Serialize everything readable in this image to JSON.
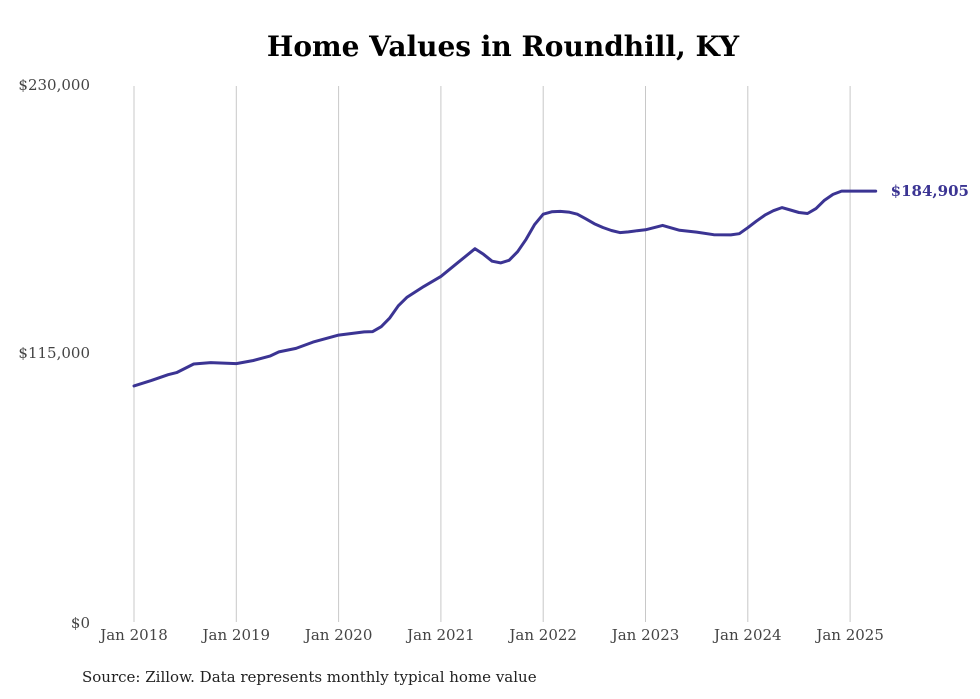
{
  "chart_data": {
    "type": "line",
    "title": "Home Values in Roundhill, KY",
    "xlabel": "",
    "ylabel": "",
    "ylim": [
      0,
      230000
    ],
    "y_ticks": [
      "$0",
      "$115,000",
      "$230,000"
    ],
    "x_ticks": [
      "Jan 2018",
      "Jan 2019",
      "Jan 2020",
      "Jan 2021",
      "Jan 2022",
      "Jan 2023",
      "Jan 2024",
      "Jan 2025"
    ],
    "grid": "vertical",
    "line_color": "#3b3493",
    "end_label": "$184,905",
    "series": [
      {
        "x": [
          "2018-01",
          "2018-03",
          "2018-05",
          "2018-06",
          "2018-08",
          "2018-10",
          "2019-01",
          "2019-03",
          "2019-05",
          "2019-06",
          "2019-08",
          "2019-10",
          "2020-01",
          "2020-04",
          "2020-05",
          "2020-06",
          "2020-07",
          "2020-08",
          "2020-09",
          "2020-11",
          "2021-01",
          "2021-03",
          "2021-05",
          "2021-06",
          "2021-07",
          "2021-08",
          "2021-09",
          "2021-10",
          "2021-11",
          "2021-12",
          "2022-01",
          "2022-02",
          "2022-03",
          "2022-04",
          "2022-05",
          "2022-06",
          "2022-07",
          "2022-08",
          "2022-09",
          "2022-10",
          "2022-11",
          "2022-12",
          "2023-01",
          "2023-03",
          "2023-05",
          "2023-07",
          "2023-09",
          "2023-11",
          "2023-12",
          "2024-01",
          "2024-02",
          "2024-03",
          "2024-04",
          "2024-05",
          "2024-06",
          "2024-07",
          "2024-08",
          "2024-09",
          "2024-10",
          "2024-11",
          "2024-12",
          "2025-01",
          "2025-02",
          "2025-03",
          "2025-04"
        ],
        "values": [
          101300,
          103600,
          106100,
          107000,
          110700,
          111300,
          110900,
          112200,
          114200,
          115900,
          117400,
          120100,
          123100,
          124500,
          124600,
          126700,
          130500,
          135700,
          139300,
          144000,
          148300,
          154200,
          160200,
          157800,
          154800,
          154100,
          155200,
          158900,
          164200,
          170600,
          175000,
          176000,
          176200,
          175900,
          175000,
          173000,
          170900,
          169300,
          168000,
          167100,
          167400,
          167900,
          168300,
          170200,
          168100,
          167300,
          166200,
          166100,
          166600,
          169200,
          172000,
          174600,
          176500,
          177800,
          176800,
          175700,
          175300,
          177400,
          181000,
          183500,
          184905,
          184905,
          184905,
          184905,
          184905
        ]
      }
    ]
  },
  "footer": {
    "source": "Source: Zillow. Data represents monthly typical home value"
  }
}
